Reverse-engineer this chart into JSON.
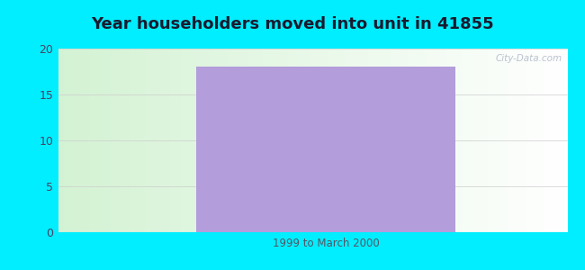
{
  "title": "Year householders moved into unit in 41855",
  "title_fontsize": 13,
  "title_color": "#1a1a2e",
  "bar_label": "1999 to March 2000",
  "bar_value": 18,
  "bar_color": "#b39ddb",
  "ylim": [
    0,
    20
  ],
  "yticks": [
    0,
    5,
    10,
    15,
    20
  ],
  "outer_bg": "#00eeff",
  "watermark": "City-Data.com",
  "xlabel_color": "#555566",
  "grid_color": "#cccccc",
  "tick_color": "#444466"
}
